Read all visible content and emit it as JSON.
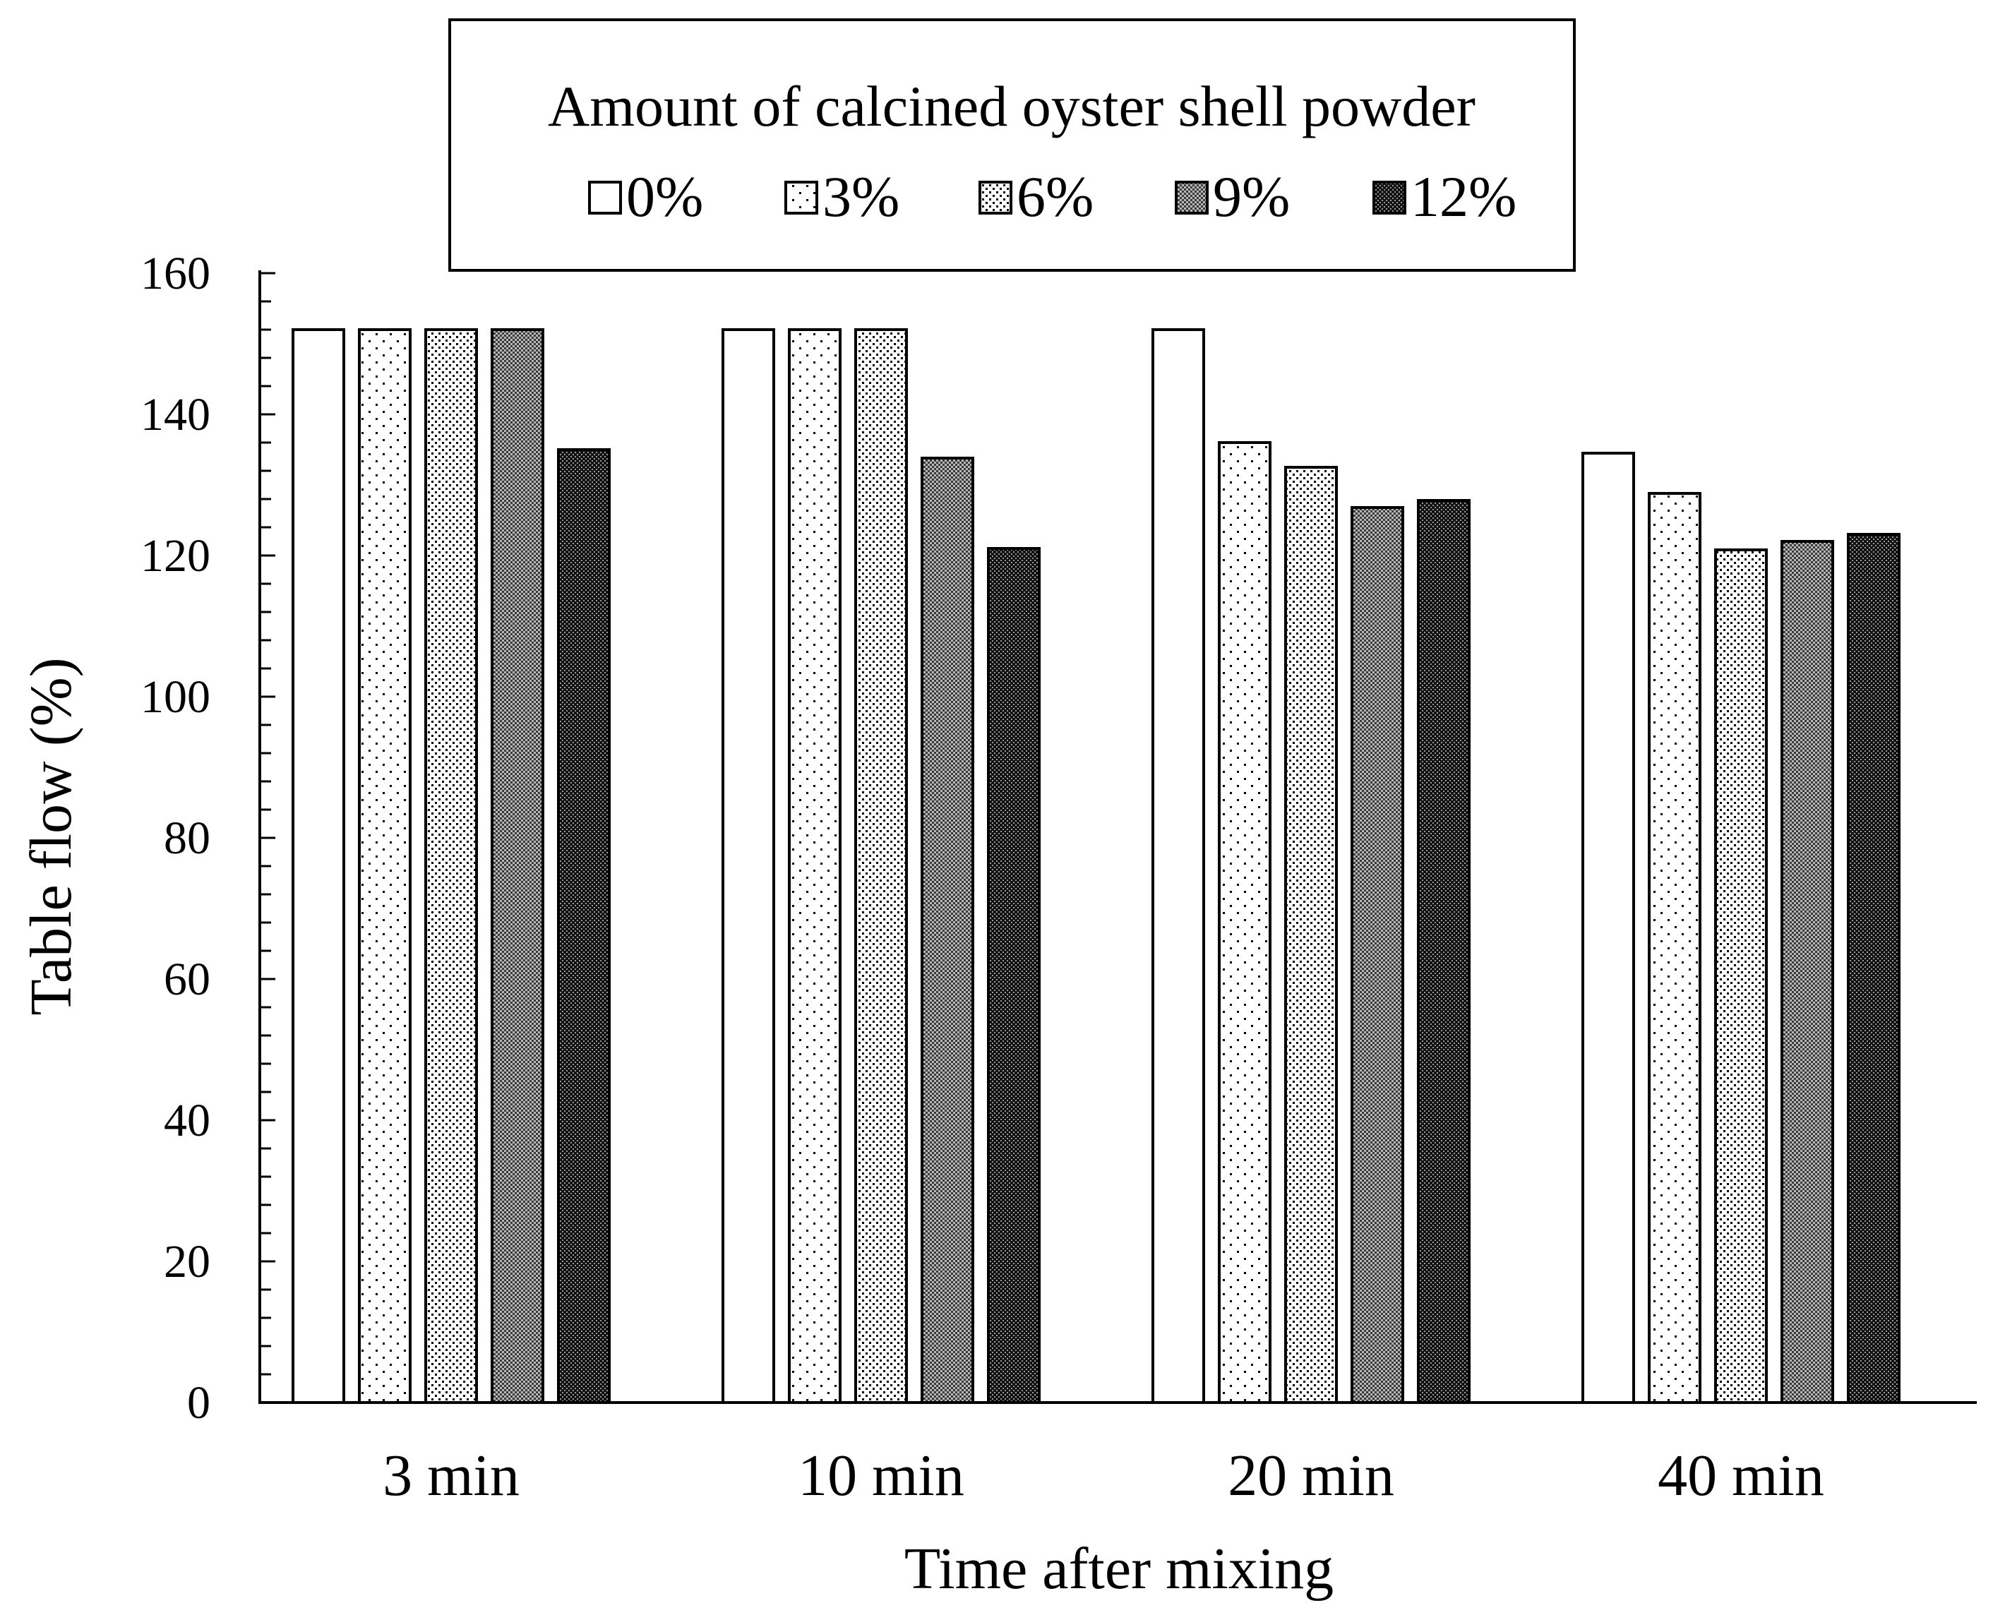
{
  "chart_data": {
    "type": "bar",
    "title": "",
    "xlabel": "Time after mixing",
    "ylabel": "Table flow (%)",
    "ylim": [
      0,
      160
    ],
    "yticks": [
      0,
      20,
      40,
      60,
      80,
      100,
      120,
      140,
      160
    ],
    "categories": [
      "3 min",
      "10 min",
      "20 min",
      "40 min"
    ],
    "legend": {
      "title": "Amount of calcined oyster shell powder",
      "placement": "top"
    },
    "series": [
      {
        "name": "0%",
        "pattern": "blank",
        "values": [
          152,
          152,
          152,
          134.5
        ]
      },
      {
        "name": "3%",
        "pattern": "sparse-dots",
        "values": [
          152,
          152,
          136,
          128.8
        ]
      },
      {
        "name": "6%",
        "pattern": "light-dots",
        "values": [
          152,
          152,
          132.5,
          120.8
        ]
      },
      {
        "name": "9%",
        "pattern": "dense-dots",
        "values": [
          152,
          133.8,
          126.8,
          122
        ]
      },
      {
        "name": "12%",
        "pattern": "dark-dots",
        "values": [
          135,
          121,
          127.8,
          123
        ]
      }
    ]
  }
}
